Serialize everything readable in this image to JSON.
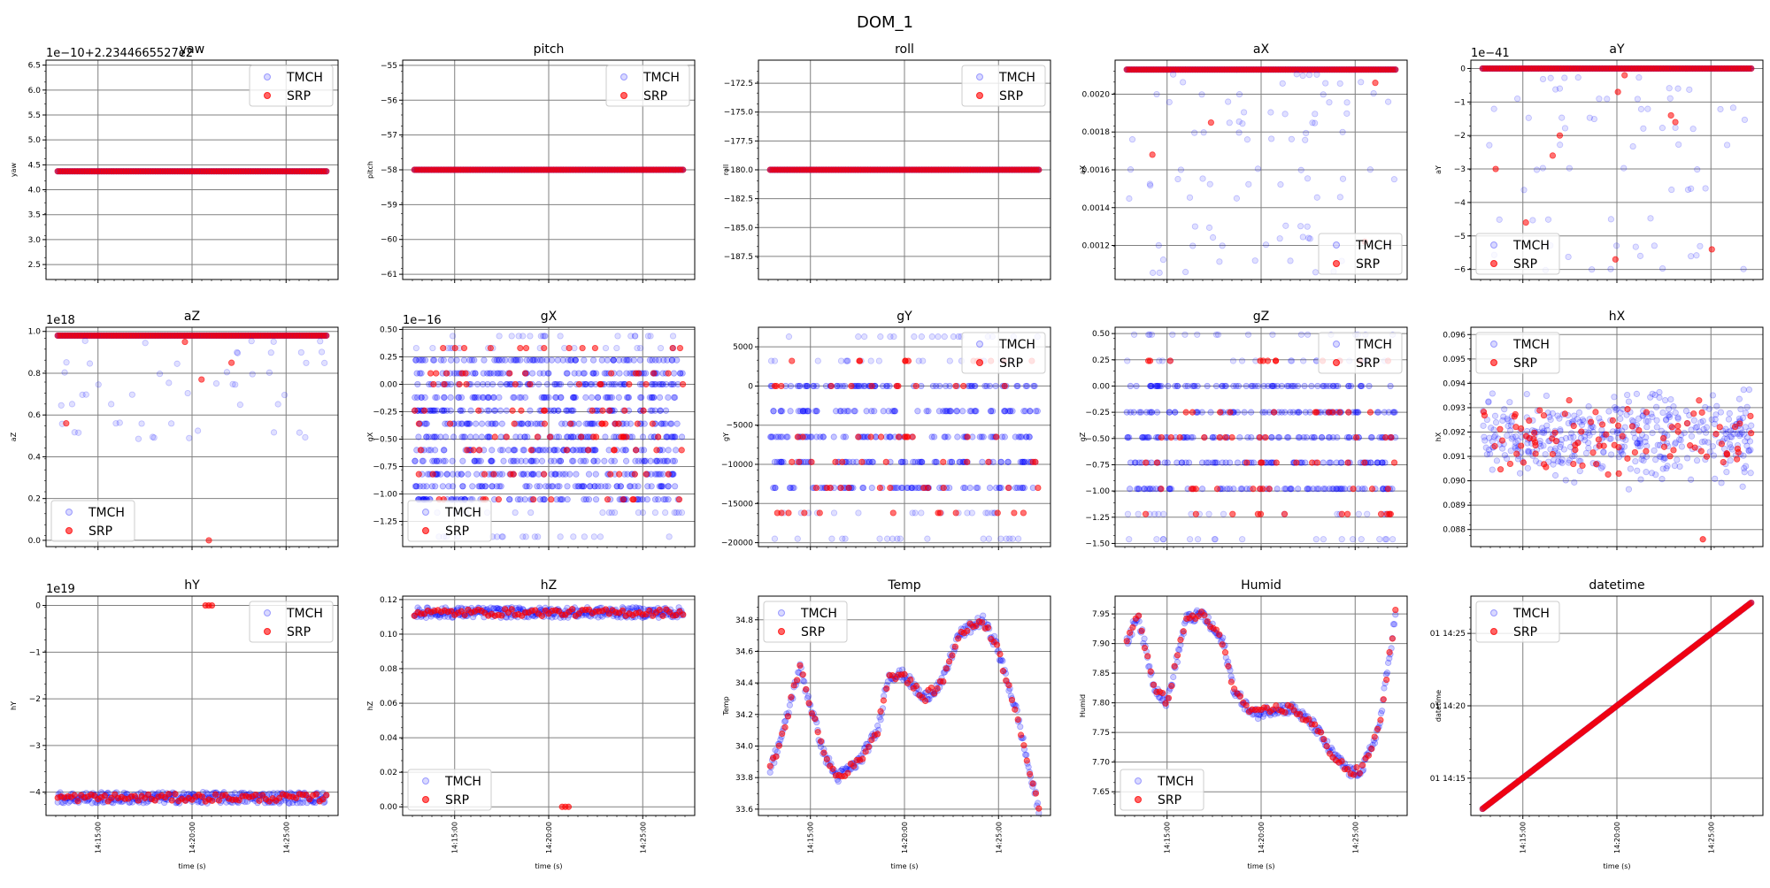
{
  "figure_title": "DOM_1",
  "colors": {
    "TMCH": "#0000ff",
    "SRP": "#ff0000",
    "grid": "#808080"
  },
  "chart_data": [
    {
      "type": "scatter",
      "title": "yaw",
      "ylabel": "yaw",
      "xlabel": "",
      "offset_text": "1e−10+2.2344665527e2",
      "ylim": [
        2.2,
        6.6
      ],
      "yticks": [
        "2.5",
        "3.0",
        "3.5",
        "4.0",
        "4.5",
        "5.0",
        "5.5",
        "6.0",
        "6.5"
      ],
      "ytick_values": [
        2.5,
        3.0,
        3.5,
        4.0,
        4.5,
        5.0,
        5.5,
        6.0,
        6.5
      ],
      "legend": "top-right",
      "grid": true,
      "pattern": "flat",
      "value": 4.37,
      "srp_value": 4.37,
      "series": [
        {
          "name": "TMCH"
        },
        {
          "name": "SRP"
        }
      ]
    },
    {
      "type": "scatter",
      "title": "pitch",
      "ylabel": "pitch",
      "xlabel": "",
      "offset_text": "",
      "ylim": [
        -61.15,
        -54.85
      ],
      "yticks": [
        "−61",
        "−60",
        "−59",
        "−58",
        "−57",
        "−56",
        "−55"
      ],
      "ytick_values": [
        -61,
        -60,
        -59,
        -58,
        -57,
        -56,
        -55
      ],
      "legend": "top-right",
      "grid": true,
      "pattern": "flat",
      "value": -58.0,
      "srp_value": -58.0,
      "series": [
        {
          "name": "TMCH"
        },
        {
          "name": "SRP"
        }
      ]
    },
    {
      "type": "scatter",
      "title": "roll",
      "ylabel": "roll",
      "xlabel": "",
      "offset_text": "",
      "ylim": [
        -189.5,
        -170.5
      ],
      "yticks": [
        "−187.5",
        "−185.0",
        "−182.5",
        "−180.0",
        "−177.5",
        "−175.0",
        "−172.5"
      ],
      "ytick_values": [
        -187.5,
        -185.0,
        -182.5,
        -180.0,
        -177.5,
        -175.0,
        -172.5
      ],
      "legend": "top-right",
      "grid": true,
      "pattern": "flat",
      "value": -180.0,
      "srp_value": -180.0,
      "series": [
        {
          "name": "TMCH"
        },
        {
          "name": "SRP"
        }
      ]
    },
    {
      "type": "scatter",
      "title": "aX",
      "ylabel": "aX",
      "xlabel": "",
      "offset_text": "",
      "ylim": [
        0.00102,
        0.00218
      ],
      "yticks": [
        "0.0012",
        "0.0014",
        "0.0016",
        "0.0018",
        "0.0020"
      ],
      "ytick_values": [
        0.0012,
        0.0014,
        0.0016,
        0.0018,
        0.002
      ],
      "legend": "bottom-right",
      "grid": true,
      "pattern": "top_outliers",
      "top": 0.00213,
      "outliers": [
        0.0021,
        0.00206,
        0.002,
        0.00196,
        0.0019,
        0.00185,
        0.0018,
        0.00176,
        0.0016,
        0.00155,
        0.00152,
        0.00145,
        0.0013,
        0.00124,
        0.0012,
        0.00112,
        0.00106
      ],
      "srp_outliers": [
        0.00206,
        0.00185,
        0.00168,
        0.00122
      ],
      "series": [
        {
          "name": "TMCH"
        },
        {
          "name": "SRP"
        }
      ]
    },
    {
      "type": "scatter",
      "title": "aY",
      "ylabel": "aY",
      "xlabel": "",
      "offset_text": "1e−41",
      "ylim": [
        -6.3,
        0.25
      ],
      "yticks": [
        "−6",
        "−5",
        "−4",
        "−3",
        "−2",
        "−1",
        "0"
      ],
      "ytick_values": [
        -6,
        -5,
        -4,
        -3,
        -2,
        -1,
        0
      ],
      "legend": "bottom-left",
      "grid": true,
      "pattern": "top_outliers",
      "top": 0.0,
      "outliers": [
        -0.3,
        -0.6,
        -0.9,
        -1.2,
        -1.5,
        -1.8,
        -2.3,
        -3.0,
        -3.6,
        -4.5,
        -5.3,
        -5.6,
        -6.0
      ],
      "srp_outliers": [
        -0.2,
        -0.7,
        -1.4,
        -1.6,
        -2.0,
        -2.6,
        -3.0,
        -4.6,
        -5.4,
        -5.7
      ],
      "series": [
        {
          "name": "TMCH"
        },
        {
          "name": "SRP"
        }
      ]
    },
    {
      "type": "scatter",
      "title": "aZ",
      "ylabel": "aZ",
      "xlabel": "",
      "offset_text": "1e18",
      "ylim": [
        -0.03,
        1.02
      ],
      "yticks": [
        "0.0",
        "0.2",
        "0.4",
        "0.6",
        "0.8",
        "1.0"
      ],
      "ytick_values": [
        0,
        0.2,
        0.4,
        0.6,
        0.8,
        1.0
      ],
      "legend": "bottom-left",
      "grid": true,
      "pattern": "top_outliers",
      "top": 0.98,
      "outliers": [
        0.95,
        0.9,
        0.85,
        0.8,
        0.75,
        0.7,
        0.65,
        0.56,
        0.52,
        0.49
      ],
      "srp_outliers": [
        0.95,
        0.85,
        0.77,
        0.56,
        0.0
      ],
      "series": [
        {
          "name": "TMCH"
        },
        {
          "name": "SRP"
        }
      ]
    },
    {
      "type": "scatter",
      "title": "gX",
      "ylabel": "gX",
      "xlabel": "",
      "offset_text": "1e−16",
      "ylim": [
        -1.48,
        0.52
      ],
      "yticks": [
        "−1.25",
        "−1.00",
        "−0.75",
        "−0.50",
        "−0.25",
        "0.00",
        "0.25",
        "0.50"
      ],
      "ytick_values": [
        -1.25,
        -1.0,
        -0.75,
        -0.5,
        -0.25,
        0,
        0.25,
        0.5
      ],
      "legend": "bottom-left",
      "grid": true,
      "pattern": "levels",
      "levels": [
        0.44,
        0.33,
        0.22,
        0.1,
        0.0,
        -0.12,
        -0.24,
        -0.36,
        -0.48,
        -0.6,
        -0.7,
        -0.82,
        -0.93,
        -1.05,
        -1.17,
        -1.39
      ],
      "srp_levels": [
        0.33,
        0.1,
        0.0,
        -0.24,
        -0.36,
        -0.48,
        -0.6,
        -0.82,
        -1.05
      ],
      "series": [
        {
          "name": "TMCH"
        },
        {
          "name": "SRP"
        }
      ]
    },
    {
      "type": "scatter",
      "title": "gY",
      "ylabel": "gY",
      "xlabel": "",
      "offset_text": "",
      "ylim": [
        -20500,
        7500
      ],
      "yticks": [
        "−20000",
        "−15000",
        "−10000",
        "−5000",
        "0",
        "5000"
      ],
      "ytick_values": [
        -20000,
        -15000,
        -10000,
        -5000,
        0,
        5000
      ],
      "legend": "top-right",
      "grid": true,
      "pattern": "levels",
      "levels": [
        6300,
        3200,
        0,
        -3200,
        -6500,
        -9700,
        -13000,
        -16200,
        -19500
      ],
      "srp_levels": [
        3200,
        0,
        -6500,
        -9700,
        -13000,
        -16200
      ],
      "series": [
        {
          "name": "TMCH"
        },
        {
          "name": "SRP"
        }
      ]
    },
    {
      "type": "scatter",
      "title": "gZ",
      "ylabel": "gZ",
      "xlabel": "",
      "offset_text": "",
      "ylim": [
        -1.53,
        0.56
      ],
      "yticks": [
        "−1.50",
        "−1.25",
        "−1.00",
        "−0.75",
        "−0.50",
        "−0.25",
        "0.00",
        "0.25",
        "0.50"
      ],
      "ytick_values": [
        -1.5,
        -1.25,
        -1.0,
        -0.75,
        -0.5,
        -0.25,
        0,
        0.25,
        0.5
      ],
      "legend": "top-right",
      "grid": true,
      "pattern": "levels",
      "levels": [
        0.49,
        0.24,
        0.0,
        -0.25,
        -0.49,
        -0.73,
        -0.98,
        -1.22,
        -1.46
      ],
      "srp_levels": [
        0.24,
        -0.25,
        -0.49,
        -0.73,
        -0.98,
        -1.22
      ],
      "series": [
        {
          "name": "TMCH"
        },
        {
          "name": "SRP"
        }
      ]
    },
    {
      "type": "scatter",
      "title": "hX",
      "ylabel": "hX",
      "xlabel": "",
      "offset_text": "",
      "ylim": [
        0.0873,
        0.0963
      ],
      "yticks": [
        "0.088",
        "0.089",
        "0.090",
        "0.091",
        "0.092",
        "0.093",
        "0.094",
        "0.095",
        "0.096"
      ],
      "ytick_values": [
        0.088,
        0.089,
        0.09,
        0.091,
        0.092,
        0.093,
        0.094,
        0.095,
        0.096
      ],
      "legend": "top-left",
      "grid": true,
      "pattern": "band",
      "center": 0.0918,
      "spread": 0.0016,
      "srp_outlier": 0.0876,
      "series": [
        {
          "name": "TMCH"
        },
        {
          "name": "SRP"
        }
      ]
    },
    {
      "type": "scatter",
      "title": "hY",
      "ylabel": "hY",
      "xlabel": "time (s)",
      "offset_text": "1e19",
      "ylim": [
        -4.5,
        0.2
      ],
      "yticks": [
        "−4",
        "−3",
        "−2",
        "−1",
        "0"
      ],
      "ytick_values": [
        -4,
        -3,
        -2,
        -1,
        0
      ],
      "legend": "top-right",
      "grid": true,
      "pattern": "band_low",
      "center": -4.12,
      "spread": 0.08,
      "srp_burst": 0.0,
      "series": [
        {
          "name": "TMCH"
        },
        {
          "name": "SRP"
        }
      ]
    },
    {
      "type": "scatter",
      "title": "hZ",
      "ylabel": "hZ",
      "xlabel": "time (s)",
      "offset_text": "",
      "ylim": [
        -0.005,
        0.122
      ],
      "yticks": [
        "0.00",
        "0.02",
        "0.04",
        "0.06",
        "0.08",
        "0.10",
        "0.12"
      ],
      "ytick_values": [
        0,
        0.02,
        0.04,
        0.06,
        0.08,
        0.1,
        0.12
      ],
      "legend": "bottom-left",
      "grid": true,
      "pattern": "band_high",
      "center": 0.1125,
      "spread": 0.002,
      "srp_burst": 0.0,
      "series": [
        {
          "name": "TMCH"
        },
        {
          "name": "SRP"
        }
      ]
    },
    {
      "type": "scatter",
      "title": "Temp",
      "ylabel": "Temp",
      "xlabel": "time (s)",
      "offset_text": "",
      "ylim": [
        33.56,
        34.95
      ],
      "yticks": [
        "33.6",
        "33.8",
        "34.0",
        "34.2",
        "34.4",
        "34.6",
        "34.8"
      ],
      "ytick_values": [
        33.6,
        33.8,
        34.0,
        34.2,
        34.4,
        34.6,
        34.8
      ],
      "legend": "top-left",
      "grid": true,
      "pattern": "curve",
      "curve_x": [
        0,
        0.05,
        0.11,
        0.16,
        0.2,
        0.25,
        0.33,
        0.4,
        0.44,
        0.5,
        0.57,
        0.64,
        0.7,
        0.79,
        0.84,
        0.92,
        0.97,
        1.0
      ],
      "curve_y": [
        33.85,
        34.1,
        34.5,
        34.2,
        33.95,
        33.8,
        33.9,
        34.1,
        34.45,
        34.45,
        34.3,
        34.4,
        34.7,
        34.8,
        34.65,
        34.2,
        33.8,
        33.6
      ],
      "series": [
        {
          "name": "TMCH"
        },
        {
          "name": "SRP"
        }
      ]
    },
    {
      "type": "scatter",
      "title": "Humid",
      "ylabel": "Humid",
      "xlabel": "time (s)",
      "offset_text": "",
      "ylim": [
        7.61,
        7.98
      ],
      "yticks": [
        "7.65",
        "7.70",
        "7.75",
        "7.80",
        "7.85",
        "7.90",
        "7.95"
      ],
      "ytick_values": [
        7.65,
        7.7,
        7.75,
        7.8,
        7.85,
        7.9,
        7.95
      ],
      "legend": "bottom-left",
      "grid": true,
      "pattern": "curve",
      "curve_x": [
        0,
        0.04,
        0.1,
        0.15,
        0.22,
        0.28,
        0.36,
        0.4,
        0.47,
        0.55,
        0.62,
        0.7,
        0.77,
        0.84,
        0.88,
        0.94,
        1.0
      ],
      "curve_y": [
        7.9,
        7.95,
        7.83,
        7.8,
        7.94,
        7.95,
        7.9,
        7.82,
        7.78,
        7.79,
        7.79,
        7.76,
        7.71,
        7.68,
        7.69,
        7.76,
        7.95
      ],
      "series": [
        {
          "name": "TMCH"
        },
        {
          "name": "SRP"
        }
      ]
    },
    {
      "type": "scatter",
      "title": "datetime",
      "ylabel": "datetime",
      "xlabel": "time (s)",
      "offset_text": "",
      "ylim": [
        0.0,
        1.0
      ],
      "yticks": [
        "01 14:15",
        "01 14:20",
        "01 14:25"
      ],
      "ytick_values": [
        0.17,
        0.5,
        0.83
      ],
      "legend": "top-left",
      "grid": true,
      "pattern": "diagonal",
      "series": [
        {
          "name": "TMCH"
        },
        {
          "name": "SRP"
        }
      ]
    }
  ],
  "xaxis": {
    "xlim": [
      0,
      1
    ],
    "xticks": [
      "14:15:00",
      "14:20:00",
      "14:25:00"
    ],
    "xtick_values": [
      0.178,
      0.5,
      0.822
    ]
  }
}
